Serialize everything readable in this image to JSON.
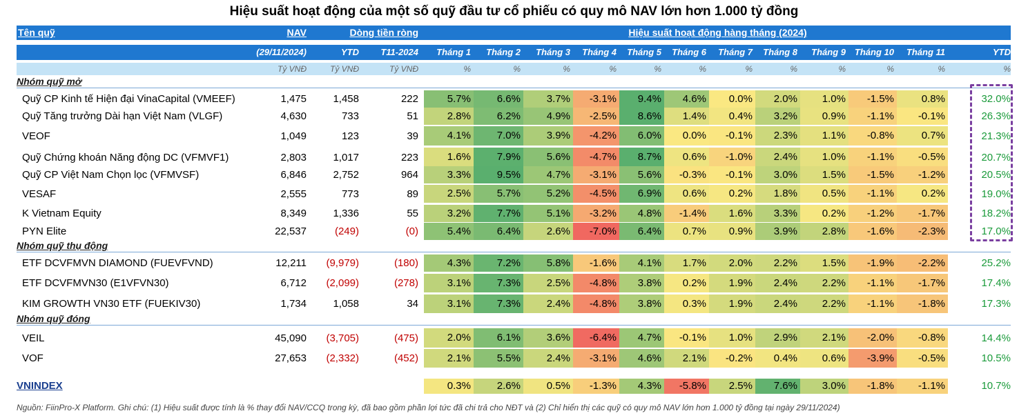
{
  "title": "Hiệu suất hoạt động của một số quỹ đầu tư cổ phiếu có quy mô NAV lớn hơn 1.000 tỷ đồng",
  "header": {
    "fund_name": "Tên quỹ",
    "nav": "NAV",
    "flow": "Dòng tiền ròng",
    "perf": "Hiệu suất hoạt động hàng tháng (2024)",
    "nav_date": "(29/11/2024)",
    "flow_ytd": "YTD",
    "flow_t11": "T11-2024",
    "months": [
      "Tháng 1",
      "Tháng 2",
      "Tháng 3",
      "Tháng 4",
      "Tháng 5",
      "Tháng 6",
      "Tháng 7",
      "Tháng 8",
      "Tháng 9",
      "Tháng 10",
      "Tháng 11"
    ],
    "ytd": "YTD",
    "unit_vnd": "Tỷ VNĐ",
    "unit_pct": "%"
  },
  "groups": [
    {
      "label": "Nhóm quỹ mở",
      "funds": [
        {
          "name": "Quỹ CP Kinh tế Hiện đại VinaCapital (VMEEF)",
          "nav": "1,475",
          "flow_ytd": "1,458",
          "flow_t11": "222",
          "months": [
            5.7,
            6.6,
            3.7,
            -3.1,
            9.4,
            4.6,
            0.0,
            2.0,
            1.0,
            -1.5,
            0.8
          ],
          "ytd": "32.0%"
        },
        {
          "name": "Quỹ Tăng trưởng Dài hạn Việt Nam (VLGF)",
          "nav": "4,630",
          "flow_ytd": "733",
          "flow_t11": "51",
          "months": [
            2.8,
            6.2,
            4.9,
            -2.5,
            8.6,
            1.4,
            0.4,
            3.2,
            0.9,
            -1.1,
            -0.1
          ],
          "ytd": "26.3%"
        },
        {
          "name": "VEOF",
          "nav": "1,049",
          "flow_ytd": "123",
          "flow_t11": "39",
          "months": [
            4.1,
            7.0,
            3.9,
            -4.2,
            6.0,
            0.0,
            -0.1,
            2.3,
            1.1,
            -0.8,
            0.7
          ],
          "ytd": "21.3%"
        },
        {
          "name": "Quỹ Chứng khoán Năng động DC (VFMVF1)",
          "nav": "2,803",
          "flow_ytd": "1,017",
          "flow_t11": "223",
          "months": [
            1.6,
            7.9,
            5.6,
            -4.7,
            8.7,
            0.6,
            -1.0,
            2.4,
            1.0,
            -1.1,
            -0.5
          ],
          "ytd": "20.7%"
        },
        {
          "name": "Quỹ CP Việt Nam Chọn lọc (VFMVSF)",
          "nav": "6,846",
          "flow_ytd": "2,752",
          "flow_t11": "964",
          "months": [
            3.3,
            9.5,
            4.7,
            -3.1,
            5.6,
            -0.3,
            -0.1,
            3.0,
            1.5,
            -1.5,
            -1.2
          ],
          "ytd": "20.5%"
        },
        {
          "name": "VESAF",
          "nav": "2,555",
          "flow_ytd": "773",
          "flow_t11": "89",
          "months": [
            2.5,
            5.7,
            5.2,
            -4.5,
            6.9,
            0.6,
            0.2,
            1.8,
            0.5,
            -1.1,
            0.2
          ],
          "ytd": "19.0%"
        },
        {
          "name": "K Vietnam Equity",
          "nav": "8,349",
          "flow_ytd": "1,336",
          "flow_t11": "55",
          "months": [
            3.2,
            7.7,
            5.1,
            -3.2,
            4.8,
            -1.4,
            1.6,
            3.3,
            0.2,
            -1.2,
            -1.7
          ],
          "ytd": "18.2%"
        },
        {
          "name": "PYN Elite",
          "nav": "22,537",
          "flow_ytd": "(249)",
          "flow_t11": "(0)",
          "months": [
            5.4,
            6.4,
            2.6,
            -7.0,
            6.4,
            0.7,
            0.9,
            3.9,
            2.8,
            -1.6,
            -2.3
          ],
          "ytd": "17.0%"
        }
      ]
    },
    {
      "label": "Nhóm quỹ thụ động",
      "funds": [
        {
          "name": "ETF DCVFMVN DIAMOND (FUEVFVND)",
          "nav": "12,211",
          "flow_ytd": "(9,979)",
          "flow_t11": "(180)",
          "months": [
            4.3,
            7.2,
            5.8,
            -1.6,
            4.1,
            1.7,
            2.0,
            2.2,
            1.5,
            -1.9,
            -2.2
          ],
          "ytd": "25.2%"
        },
        {
          "name": "ETF DCVFMVN30 (E1VFVN30)",
          "nav": "6,712",
          "flow_ytd": "(2,099)",
          "flow_t11": "(278)",
          "months": [
            3.1,
            7.3,
            2.5,
            -4.8,
            3.8,
            0.2,
            1.9,
            2.4,
            2.2,
            -1.1,
            -1.7
          ],
          "ytd": "17.4%"
        },
        {
          "name": "KIM GROWTH VN30 ETF (FUEKIV30)",
          "nav": "1,734",
          "flow_ytd": "1,058",
          "flow_t11": "34",
          "months": [
            3.1,
            7.3,
            2.4,
            -4.8,
            3.8,
            0.3,
            1.9,
            2.4,
            2.2,
            -1.1,
            -1.8
          ],
          "ytd": "17.3%"
        }
      ]
    },
    {
      "label": "Nhóm quỹ đóng",
      "funds": [
        {
          "name": "VEIL",
          "nav": "45,090",
          "flow_ytd": "(3,705)",
          "flow_t11": "(475)",
          "months": [
            2.0,
            6.1,
            3.6,
            -6.4,
            4.7,
            -0.1,
            1.0,
            2.9,
            2.1,
            -2.0,
            -0.8
          ],
          "ytd": "14.4%"
        },
        {
          "name": "VOF",
          "nav": "27,653",
          "flow_ytd": "(2,332)",
          "flow_t11": "(452)",
          "months": [
            2.1,
            5.5,
            2.4,
            -3.1,
            4.6,
            2.1,
            -0.2,
            0.4,
            0.6,
            -3.9,
            -0.5
          ],
          "ytd": "10.5%"
        }
      ]
    }
  ],
  "vnindex": {
    "name": "VNINDEX",
    "months": [
      0.3,
      2.6,
      0.5,
      -1.3,
      4.3,
      -5.8,
      2.5,
      7.6,
      3.0,
      -1.8,
      -1.1
    ],
    "ytd": "10.7%"
  },
  "footnote": "Nguồn: FiinPro-X Platform. Ghi chú: (1) Hiệu suất được tính là % thay đổi NAV/CCQ trong kỳ, đã bao gồm phần lợi tức đã chi trả cho NĐT và (2) Chỉ hiển thị các quỹ có quy mô NAV lớn hơn 1.000 tỷ đồng tại ngày 29/11/2024)"
}
